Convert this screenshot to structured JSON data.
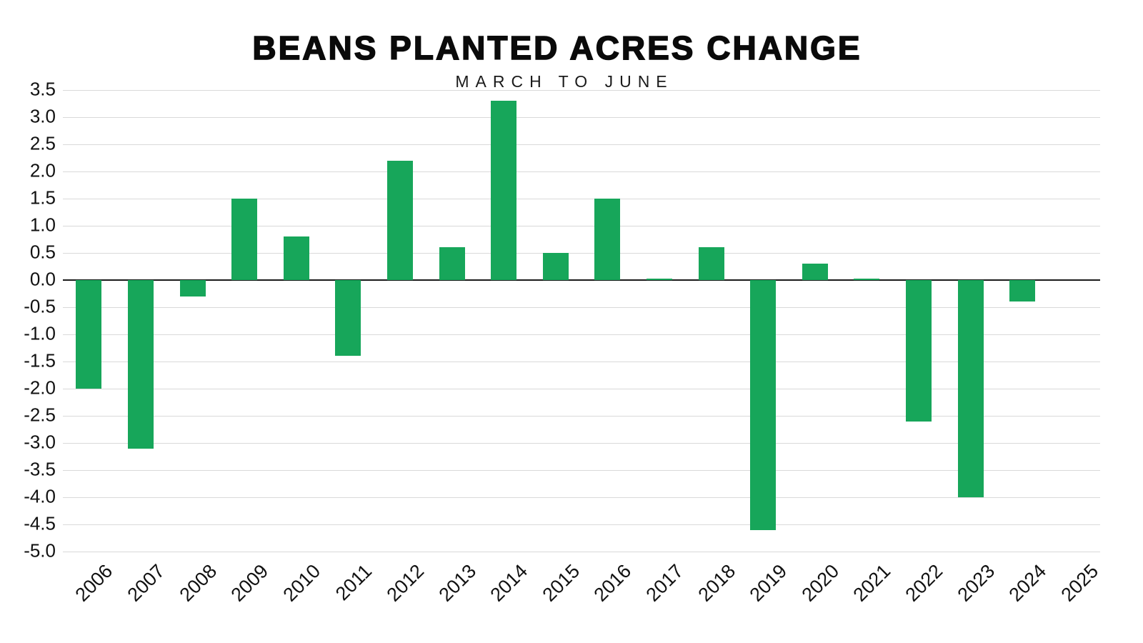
{
  "chart": {
    "title": "BEANS PLANTED ACRES CHANGE",
    "subtitle": "MARCH TO JUNE"
  },
  "chart_data": {
    "type": "bar",
    "title": "BEANS PLANTED ACRES CHANGE",
    "subtitle": "MARCH TO JUNE",
    "xlabel": "",
    "ylabel": "",
    "categories": [
      "2006",
      "2007",
      "2008",
      "2009",
      "2010",
      "2011",
      "2012",
      "2013",
      "2014",
      "2015",
      "2016",
      "2017",
      "2018",
      "2019",
      "2020",
      "2021",
      "2022",
      "2023",
      "2024",
      "2025"
    ],
    "values": [
      -2.0,
      -3.1,
      -0.3,
      1.5,
      0.8,
      -1.4,
      2.2,
      0.6,
      3.3,
      0.5,
      1.5,
      0.02,
      0.6,
      -4.6,
      0.3,
      0.02,
      -2.6,
      -4.0,
      -0.4,
      null
    ],
    "ylim": [
      -5.0,
      3.5
    ],
    "yticks": [
      3.5,
      3.0,
      2.5,
      2.0,
      1.5,
      1.0,
      0.5,
      0.0,
      -0.5,
      -1.0,
      -1.5,
      -2.0,
      -2.5,
      -3.0,
      -3.5,
      -4.0,
      -4.5,
      -5.0
    ],
    "grid": true,
    "legend": "none",
    "bar_color": "#17A65A",
    "gridline_color": "#d9d9d9",
    "zero_line_color": "#1a1a1a",
    "text_color": "#111111"
  }
}
